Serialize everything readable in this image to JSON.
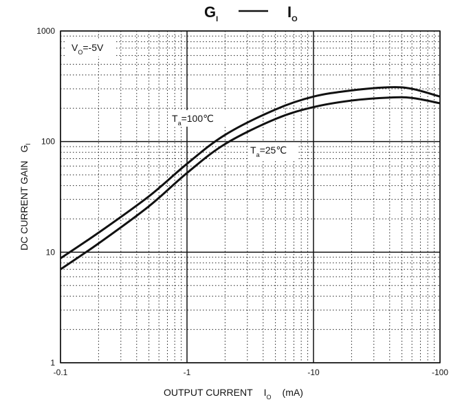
{
  "chart_data": {
    "type": "line",
    "title": {
      "gi_main": "G",
      "gi_sub": "I",
      "io_main": "I",
      "io_sub": "O"
    },
    "xlabel": {
      "text": "OUTPUT CURRENT",
      "symbol": "I",
      "symbol_sub": "O",
      "unit": "(mA)"
    },
    "ylabel": {
      "text": "DC CURRENT GAIN",
      "symbol": "G",
      "symbol_sub": "I"
    },
    "x_scale": "log",
    "y_scale": "log",
    "x_range_abs": [
      0.1,
      100
    ],
    "y_range": [
      1,
      1000
    ],
    "x_tick_labels": [
      "-0.1",
      "-1",
      "-10",
      "-100"
    ],
    "y_tick_labels": [
      "1",
      "10",
      "100",
      "1000"
    ],
    "x_tick_values_abs": [
      0.1,
      1,
      10,
      100
    ],
    "y_tick_values": [
      1,
      10,
      100,
      1000
    ],
    "grid": true,
    "grid_minor": "dotted",
    "annotations": {
      "condition_main": "V",
      "condition_sub": "O",
      "condition_rest": "=-5V",
      "t100_main": "T",
      "t100_sub": "a",
      "t100_rest": "=100℃",
      "t25_main": "T",
      "t25_sub": "a",
      "t25_rest": "=25℃"
    },
    "series": [
      {
        "x_abs": [
          0.1,
          0.2,
          0.5,
          1,
          2,
          5,
          10,
          20,
          40,
          60,
          100
        ],
        "values": [
          8.8,
          15,
          32,
          63,
          115,
          195,
          255,
          290,
          310,
          300,
          255
        ]
      },
      {
        "x_abs": [
          0.1,
          0.2,
          0.5,
          1,
          2,
          5,
          10,
          20,
          40,
          60,
          100
        ],
        "values": [
          7,
          12,
          26,
          52,
          95,
          160,
          205,
          235,
          250,
          248,
          222
        ]
      }
    ]
  }
}
